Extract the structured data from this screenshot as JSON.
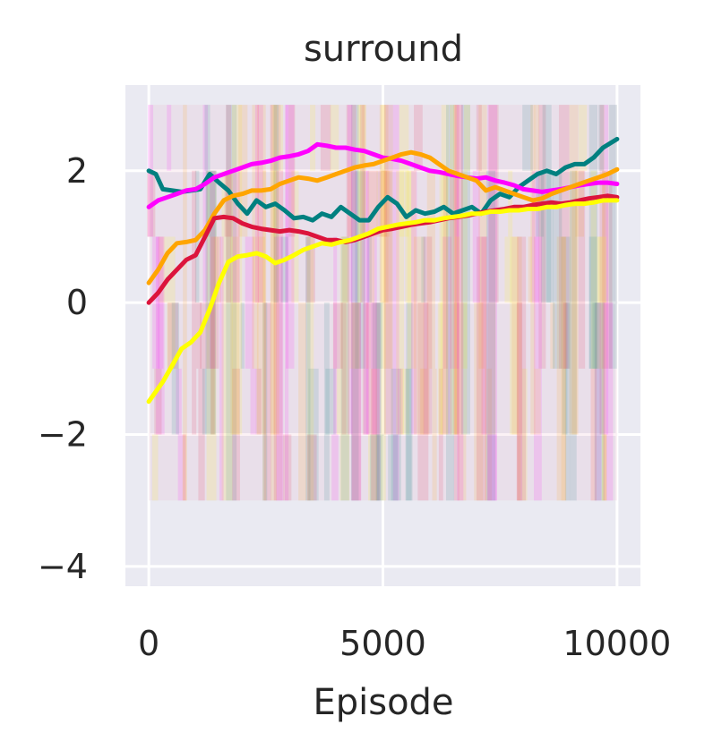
{
  "chart_data": {
    "type": "line",
    "title": "surround",
    "xlabel": "Episode",
    "ylabel": "",
    "xlim": [
      -500,
      10500
    ],
    "ylim": [
      -4.3,
      3.3
    ],
    "xticks": [
      0,
      5000,
      10000
    ],
    "xtick_labels": [
      "0",
      "5000",
      "10000"
    ],
    "yticks": [
      -4,
      -2,
      0,
      2
    ],
    "ytick_labels": [
      "−4",
      "−2",
      "0",
      "2"
    ],
    "grid": true,
    "legend": "none",
    "background": "#eaeaf2",
    "raw_band": {
      "low": -3,
      "high": 3,
      "opacity": 0.15
    },
    "series": [
      {
        "color": "#008080",
        "x": [
          0,
          150,
          300,
          500,
          700,
          900,
          1100,
          1300,
          1500,
          1700,
          1900,
          2100,
          2300,
          2500,
          2700,
          2900,
          3100,
          3300,
          3500,
          3700,
          3900,
          4100,
          4300,
          4500,
          4700,
          4900,
          5100,
          5300,
          5500,
          5700,
          5900,
          6100,
          6300,
          6500,
          6700,
          6900,
          7100,
          7300,
          7500,
          7700,
          7900,
          8100,
          8300,
          8500,
          8700,
          8900,
          9100,
          9300,
          9500,
          9700,
          10000
        ],
        "y": [
          2.0,
          1.95,
          1.72,
          1.7,
          1.68,
          1.7,
          1.72,
          1.95,
          1.82,
          1.7,
          1.5,
          1.35,
          1.55,
          1.45,
          1.5,
          1.4,
          1.28,
          1.3,
          1.25,
          1.35,
          1.3,
          1.45,
          1.35,
          1.25,
          1.25,
          1.45,
          1.6,
          1.5,
          1.3,
          1.4,
          1.35,
          1.38,
          1.45,
          1.35,
          1.4,
          1.45,
          1.35,
          1.55,
          1.65,
          1.6,
          1.75,
          1.85,
          1.95,
          2.0,
          1.95,
          2.05,
          2.1,
          2.1,
          2.2,
          2.35,
          2.48
        ]
      },
      {
        "color": "#ff00ff",
        "x": [
          0,
          200,
          400,
          600,
          800,
          1000,
          1200,
          1400,
          1600,
          1800,
          2000,
          2200,
          2400,
          2600,
          2800,
          3000,
          3200,
          3400,
          3600,
          3800,
          4000,
          4200,
          4400,
          4600,
          4800,
          5000,
          5200,
          5400,
          5600,
          5800,
          6000,
          6200,
          6400,
          6600,
          6800,
          7000,
          7200,
          7400,
          7600,
          7800,
          8000,
          8200,
          8400,
          8600,
          8800,
          9000,
          9200,
          9400,
          9600,
          9800,
          10000
        ],
        "y": [
          1.45,
          1.55,
          1.6,
          1.65,
          1.7,
          1.72,
          1.8,
          1.9,
          1.95,
          2.0,
          2.05,
          2.1,
          2.12,
          2.15,
          2.2,
          2.22,
          2.25,
          2.3,
          2.4,
          2.38,
          2.35,
          2.35,
          2.32,
          2.3,
          2.25,
          2.2,
          2.18,
          2.15,
          2.1,
          2.05,
          2.0,
          1.98,
          1.95,
          1.92,
          1.9,
          1.88,
          1.9,
          1.85,
          1.82,
          1.78,
          1.72,
          1.7,
          1.68,
          1.7,
          1.72,
          1.75,
          1.78,
          1.8,
          1.82,
          1.82,
          1.8
        ]
      },
      {
        "color": "#ffa500",
        "x": [
          0,
          200,
          400,
          600,
          800,
          1000,
          1200,
          1400,
          1600,
          1800,
          2000,
          2200,
          2400,
          2600,
          2800,
          3000,
          3200,
          3400,
          3600,
          3800,
          4000,
          4200,
          4400,
          4600,
          4800,
          5000,
          5200,
          5400,
          5600,
          5800,
          6000,
          6200,
          6400,
          6600,
          6800,
          7000,
          7200,
          7400,
          7600,
          7800,
          8000,
          8200,
          8400,
          8600,
          8800,
          9000,
          9200,
          9400,
          9600,
          9800,
          10000
        ],
        "y": [
          0.3,
          0.5,
          0.75,
          0.9,
          0.92,
          0.95,
          1.1,
          1.35,
          1.55,
          1.62,
          1.65,
          1.7,
          1.7,
          1.72,
          1.8,
          1.85,
          1.9,
          1.88,
          1.85,
          1.9,
          1.95,
          2.0,
          2.05,
          2.08,
          2.1,
          2.15,
          2.2,
          2.25,
          2.28,
          2.25,
          2.2,
          2.1,
          2.0,
          1.95,
          1.9,
          1.85,
          1.7,
          1.75,
          1.7,
          1.65,
          1.6,
          1.55,
          1.58,
          1.65,
          1.7,
          1.75,
          1.8,
          1.85,
          1.9,
          1.95,
          2.02
        ]
      },
      {
        "color": "#dc143c",
        "x": [
          0,
          200,
          400,
          600,
          800,
          1000,
          1200,
          1400,
          1600,
          1800,
          2000,
          2200,
          2400,
          2600,
          2800,
          3000,
          3200,
          3400,
          3600,
          3800,
          4000,
          4200,
          4400,
          4600,
          4800,
          5000,
          5200,
          5400,
          5600,
          5800,
          6000,
          6200,
          6400,
          6600,
          6800,
          7000,
          7200,
          7400,
          7600,
          7800,
          8000,
          8200,
          8400,
          8600,
          8800,
          9000,
          9200,
          9400,
          9600,
          9800,
          10000
        ],
        "y": [
          0.0,
          0.15,
          0.35,
          0.5,
          0.65,
          0.72,
          1.0,
          1.28,
          1.3,
          1.28,
          1.2,
          1.15,
          1.12,
          1.1,
          1.08,
          1.1,
          1.08,
          1.05,
          1.0,
          0.95,
          0.95,
          0.92,
          0.95,
          1.0,
          1.05,
          1.1,
          1.12,
          1.15,
          1.18,
          1.2,
          1.22,
          1.25,
          1.28,
          1.3,
          1.32,
          1.35,
          1.38,
          1.4,
          1.42,
          1.45,
          1.45,
          1.48,
          1.5,
          1.52,
          1.5,
          1.52,
          1.55,
          1.58,
          1.6,
          1.62,
          1.6
        ]
      },
      {
        "color": "#ffff00",
        "x": [
          0,
          150,
          300,
          500,
          700,
          900,
          1100,
          1300,
          1500,
          1700,
          1900,
          2100,
          2300,
          2500,
          2700,
          2900,
          3100,
          3300,
          3500,
          3700,
          3900,
          4100,
          4300,
          4500,
          4700,
          4900,
          5100,
          5300,
          5500,
          5700,
          5900,
          6100,
          6300,
          6500,
          6700,
          6900,
          7100,
          7300,
          7500,
          7700,
          7900,
          8100,
          8300,
          8500,
          8700,
          8900,
          9100,
          9300,
          9500,
          9700,
          10000
        ],
        "y": [
          -1.5,
          -1.35,
          -1.2,
          -0.95,
          -0.7,
          -0.6,
          -0.45,
          -0.1,
          0.3,
          0.62,
          0.7,
          0.72,
          0.75,
          0.7,
          0.6,
          0.65,
          0.72,
          0.8,
          0.85,
          0.9,
          0.88,
          0.92,
          0.95,
          1.0,
          1.05,
          1.12,
          1.15,
          1.18,
          1.2,
          1.22,
          1.25,
          1.25,
          1.28,
          1.3,
          1.32,
          1.35,
          1.35,
          1.38,
          1.38,
          1.4,
          1.4,
          1.42,
          1.42,
          1.45,
          1.45,
          1.48,
          1.5,
          1.5,
          1.52,
          1.55,
          1.55
        ]
      }
    ]
  }
}
